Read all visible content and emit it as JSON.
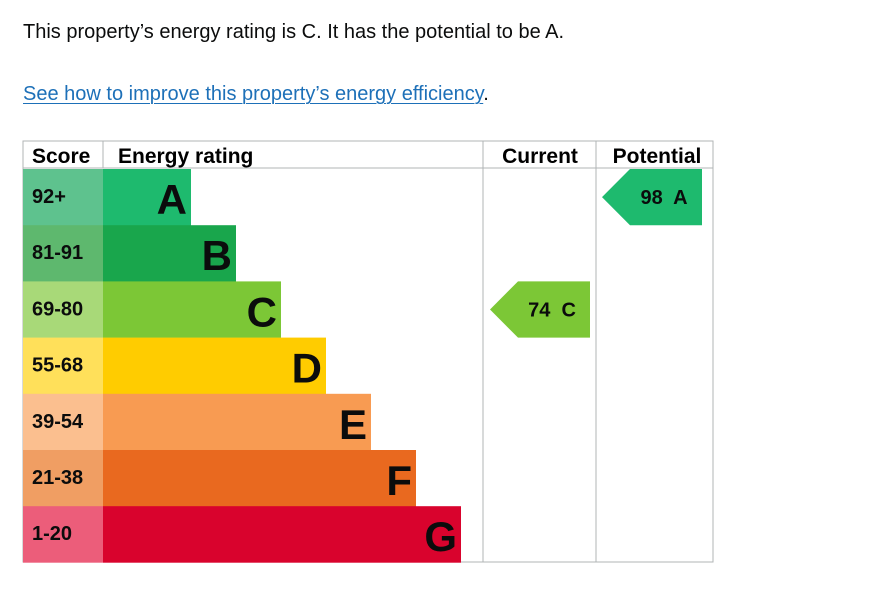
{
  "intro": {
    "sentence": "This property’s energy rating is C. It has the potential to be A.",
    "link_text": "See how to improve this property’s energy efficiency",
    "link_suffix": "."
  },
  "colors": {
    "A": "#1eba6e",
    "B": "#19a64c",
    "C": "#7cc736",
    "D": "#ffcc00",
    "E": "#f89b52",
    "F": "#e9691f",
    "G": "#d9032d",
    "score_A": "#5ec28e",
    "score_B": "#5eb86e",
    "score_C": "#a8d978",
    "score_D": "#ffe05a",
    "score_E": "#fbbf8f",
    "score_F": "#f09e63",
    "score_G": "#ec5d7a",
    "link": "#1d70b8",
    "grid": "#b1b4b6"
  },
  "chart_data": {
    "type": "table",
    "headers": {
      "score": "Score",
      "rating": "Energy rating",
      "current": "Current",
      "potential": "Potential"
    },
    "bands": [
      {
        "band": "A",
        "range": "92+"
      },
      {
        "band": "B",
        "range": "81-91"
      },
      {
        "band": "C",
        "range": "69-80"
      },
      {
        "band": "D",
        "range": "55-68"
      },
      {
        "band": "E",
        "range": "39-54"
      },
      {
        "band": "F",
        "range": "21-38"
      },
      {
        "band": "G",
        "range": "1-20"
      }
    ],
    "current": {
      "score": 74,
      "band": "C",
      "label": "74  C"
    },
    "potential": {
      "score": 98,
      "band": "A",
      "label": "98  A"
    }
  }
}
